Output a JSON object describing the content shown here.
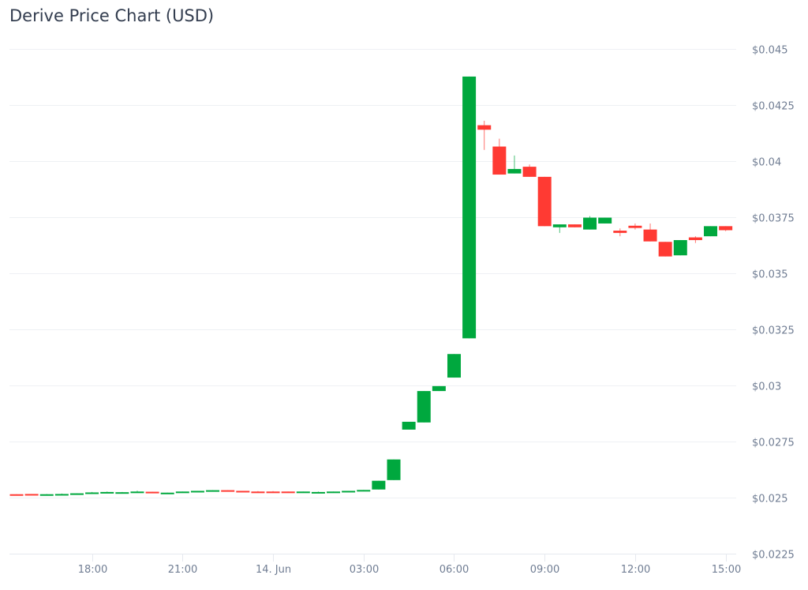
{
  "header": {
    "title": "Derive Price Chart (USD)"
  },
  "colors": {
    "up": "#00a83e",
    "down": "#ff3a33",
    "grid": "#eef0f4",
    "axis_text": "#707d93"
  },
  "chart_data": {
    "type": "candlestick",
    "title": "Derive Price Chart (USD)",
    "xlabel": "",
    "ylabel": "",
    "ylim": [
      0.0225,
      0.045
    ],
    "y_ticks": [
      "$0.045",
      "$0.0425",
      "$0.04",
      "$0.0375",
      "$0.035",
      "$0.0325",
      "$0.03",
      "$0.0275",
      "$0.025",
      "$0.0225"
    ],
    "y_tick_values": [
      0.045,
      0.0425,
      0.04,
      0.0375,
      0.035,
      0.0325,
      0.03,
      0.0275,
      0.025,
      0.0225
    ],
    "x_ticks": [
      "18:00",
      "21:00",
      "14. Jun",
      "03:00",
      "06:00",
      "09:00",
      "12:00",
      "15:00"
    ],
    "x_tick_index": [
      5,
      11,
      17,
      23,
      29,
      35,
      41,
      47
    ],
    "interval": "30m",
    "grid": true,
    "candles": [
      {
        "o": 0.02515,
        "h": 0.02515,
        "l": 0.02513,
        "c": 0.02513
      },
      {
        "o": 0.02516,
        "h": 0.02516,
        "l": 0.02514,
        "c": 0.02514
      },
      {
        "o": 0.02514,
        "h": 0.02516,
        "l": 0.02514,
        "c": 0.02515
      },
      {
        "o": 0.02515,
        "h": 0.02518,
        "l": 0.02514,
        "c": 0.02516
      },
      {
        "o": 0.02515,
        "h": 0.02519,
        "l": 0.02515,
        "c": 0.02519
      },
      {
        "o": 0.0252,
        "h": 0.02525,
        "l": 0.0252,
        "c": 0.02523
      },
      {
        "o": 0.02522,
        "h": 0.02527,
        "l": 0.02522,
        "c": 0.02525
      },
      {
        "o": 0.0252,
        "h": 0.02525,
        "l": 0.0252,
        "c": 0.02524
      },
      {
        "o": 0.02523,
        "h": 0.02531,
        "l": 0.02523,
        "c": 0.02527
      },
      {
        "o": 0.02526,
        "h": 0.02526,
        "l": 0.0252,
        "c": 0.02524
      },
      {
        "o": 0.02518,
        "h": 0.02522,
        "l": 0.02518,
        "c": 0.02522
      },
      {
        "o": 0.02523,
        "h": 0.02527,
        "l": 0.02523,
        "c": 0.02527
      },
      {
        "o": 0.02527,
        "h": 0.0253,
        "l": 0.02527,
        "c": 0.0253
      },
      {
        "o": 0.02528,
        "h": 0.02533,
        "l": 0.02528,
        "c": 0.02533
      },
      {
        "o": 0.02533,
        "h": 0.02533,
        "l": 0.02528,
        "c": 0.02529
      },
      {
        "o": 0.0253,
        "h": 0.0253,
        "l": 0.02526,
        "c": 0.02527
      },
      {
        "o": 0.02527,
        "h": 0.02529,
        "l": 0.02524,
        "c": 0.02525
      },
      {
        "o": 0.02527,
        "h": 0.02529,
        "l": 0.02524,
        "c": 0.02525
      },
      {
        "o": 0.02527,
        "h": 0.02527,
        "l": 0.02524,
        "c": 0.02525
      },
      {
        "o": 0.02526,
        "h": 0.02527,
        "l": 0.02525,
        "c": 0.02527
      },
      {
        "o": 0.02523,
        "h": 0.02527,
        "l": 0.02522,
        "c": 0.02525
      },
      {
        "o": 0.02524,
        "h": 0.02527,
        "l": 0.02524,
        "c": 0.02527
      },
      {
        "o": 0.02527,
        "h": 0.0253,
        "l": 0.02527,
        "c": 0.0253
      },
      {
        "o": 0.0253,
        "h": 0.02534,
        "l": 0.0253,
        "c": 0.02534
      },
      {
        "o": 0.02536,
        "h": 0.02575,
        "l": 0.02536,
        "c": 0.02575
      },
      {
        "o": 0.02578,
        "h": 0.0267,
        "l": 0.02578,
        "c": 0.0267
      },
      {
        "o": 0.02803,
        "h": 0.02838,
        "l": 0.02803,
        "c": 0.02838
      },
      {
        "o": 0.02835,
        "h": 0.02975,
        "l": 0.02835,
        "c": 0.02975
      },
      {
        "o": 0.02975,
        "h": 0.02997,
        "l": 0.02975,
        "c": 0.02997
      },
      {
        "o": 0.03035,
        "h": 0.0314,
        "l": 0.03035,
        "c": 0.0314
      },
      {
        "o": 0.0321,
        "h": 0.04377,
        "l": 0.0321,
        "c": 0.04377
      },
      {
        "o": 0.0416,
        "h": 0.0418,
        "l": 0.0405,
        "c": 0.0414
      },
      {
        "o": 0.04065,
        "h": 0.041,
        "l": 0.0394,
        "c": 0.0394
      },
      {
        "o": 0.03945,
        "h": 0.04025,
        "l": 0.03945,
        "c": 0.03965
      },
      {
        "o": 0.03975,
        "h": 0.03985,
        "l": 0.0393,
        "c": 0.0393
      },
      {
        "o": 0.0393,
        "h": 0.0393,
        "l": 0.0371,
        "c": 0.0371
      },
      {
        "o": 0.03705,
        "h": 0.03718,
        "l": 0.0368,
        "c": 0.03718
      },
      {
        "o": 0.03718,
        "h": 0.03718,
        "l": 0.03705,
        "c": 0.03705
      },
      {
        "o": 0.03695,
        "h": 0.03755,
        "l": 0.03695,
        "c": 0.03748
      },
      {
        "o": 0.03722,
        "h": 0.03748,
        "l": 0.03722,
        "c": 0.03748
      },
      {
        "o": 0.0369,
        "h": 0.037,
        "l": 0.03665,
        "c": 0.0368
      },
      {
        "o": 0.03712,
        "h": 0.03722,
        "l": 0.03695,
        "c": 0.03702
      },
      {
        "o": 0.03695,
        "h": 0.03722,
        "l": 0.03642,
        "c": 0.03642
      },
      {
        "o": 0.0364,
        "h": 0.0364,
        "l": 0.03575,
        "c": 0.03575
      },
      {
        "o": 0.0358,
        "h": 0.03648,
        "l": 0.0358,
        "c": 0.03648
      },
      {
        "o": 0.0366,
        "h": 0.03665,
        "l": 0.03635,
        "c": 0.03648
      },
      {
        "o": 0.03665,
        "h": 0.0371,
        "l": 0.03665,
        "c": 0.0371
      },
      {
        "o": 0.0371,
        "h": 0.0371,
        "l": 0.03688,
        "c": 0.03692
      }
    ]
  }
}
